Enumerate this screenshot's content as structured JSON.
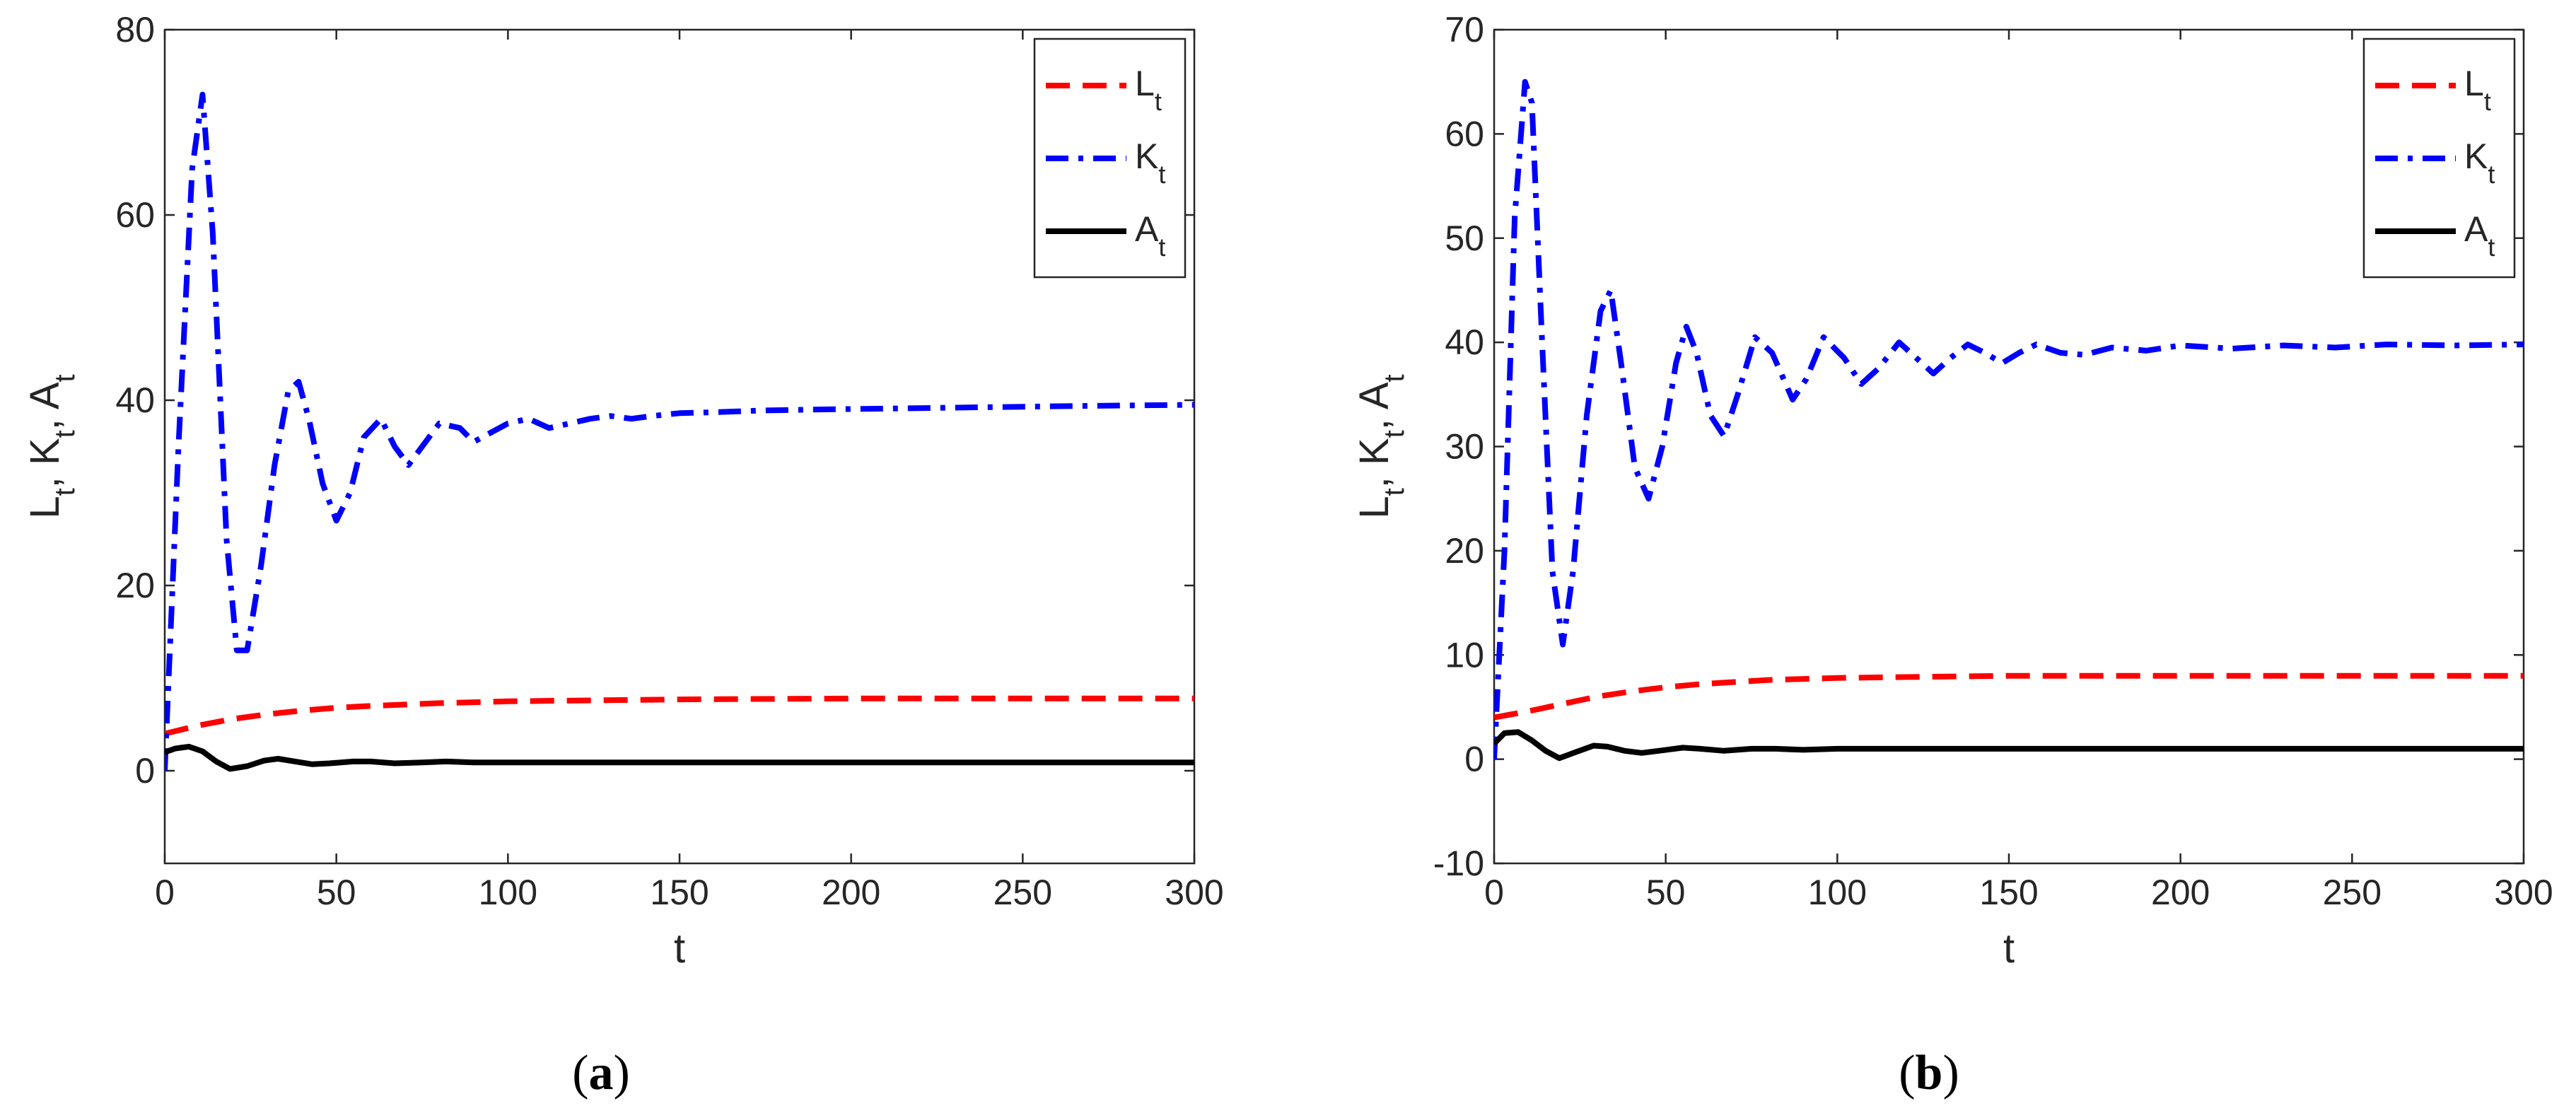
{
  "chart_data": [
    {
      "type": "line",
      "caption_letter": "a",
      "xlabel": "t",
      "ylabel": "L_t, K_t, A_t",
      "xlim": [
        0,
        300
      ],
      "ylim": [
        -10,
        80
      ],
      "xticks": [
        0,
        50,
        100,
        150,
        200,
        250,
        300
      ],
      "yticks": [
        0,
        20,
        40,
        60,
        80
      ],
      "legend_position": "top-right",
      "series": [
        {
          "name": "L_t",
          "label_main": "L",
          "label_sub": "t",
          "color": "#ff0000",
          "style": "dashed",
          "x": [
            0,
            10,
            20,
            30,
            40,
            50,
            60,
            80,
            100,
            125,
            150,
            200,
            250,
            300
          ],
          "values": [
            4,
            4.9,
            5.6,
            6.1,
            6.5,
            6.8,
            7.0,
            7.3,
            7.5,
            7.6,
            7.7,
            7.8,
            7.8,
            7.8
          ]
        },
        {
          "name": "K_t",
          "label_main": "K",
          "label_sub": "t",
          "color": "#0000ff",
          "style": "dashdot",
          "x": [
            0,
            4,
            8,
            11,
            14,
            18,
            21,
            24,
            28,
            32,
            36,
            39,
            42,
            46,
            50,
            54,
            58,
            63,
            67,
            71,
            75,
            80,
            86,
            90,
            95,
            100,
            106,
            112,
            118,
            124,
            130,
            136,
            142,
            150,
            160,
            175,
            190,
            210,
            230,
            250,
            270,
            300
          ],
          "values": [
            0,
            35,
            65,
            73,
            58,
            25,
            13,
            13,
            22,
            33,
            41,
            42,
            38,
            31,
            27,
            30,
            36,
            38,
            35,
            33,
            35,
            37.5,
            37,
            35.5,
            36.5,
            37.5,
            38,
            37,
            37.5,
            38,
            38.3,
            38,
            38.3,
            38.6,
            38.7,
            38.9,
            39,
            39.1,
            39.2,
            39.3,
            39.4,
            39.5
          ]
        },
        {
          "name": "A_t",
          "label_main": "A",
          "label_sub": "t",
          "color": "#000000",
          "style": "solid",
          "x": [
            0,
            3,
            7,
            11,
            15,
            19,
            24,
            29,
            33,
            38,
            43,
            48,
            55,
            60,
            67,
            75,
            82,
            90,
            100,
            120,
            150,
            200,
            250,
            300
          ],
          "values": [
            2,
            2.4,
            2.6,
            2.1,
            1.0,
            0.2,
            0.5,
            1.1,
            1.3,
            1.0,
            0.7,
            0.8,
            1.0,
            1.0,
            0.8,
            0.9,
            1.0,
            0.9,
            0.9,
            0.9,
            0.9,
            0.9,
            0.9,
            0.9
          ]
        }
      ]
    },
    {
      "type": "line",
      "caption_letter": "b",
      "xlabel": "t",
      "ylabel": "L_t, K_t, A_t",
      "xlim": [
        0,
        300
      ],
      "ylim": [
        -10,
        70
      ],
      "xticks": [
        0,
        50,
        100,
        150,
        200,
        250,
        300
      ],
      "yticks": [
        -10,
        0,
        10,
        20,
        30,
        40,
        50,
        60,
        70
      ],
      "legend_position": "top-right",
      "series": [
        {
          "name": "L_t",
          "label_main": "L",
          "label_sub": "t",
          "color": "#ff0000",
          "style": "dashed",
          "x": [
            0,
            10,
            20,
            30,
            40,
            50,
            60,
            80,
            100,
            125,
            150,
            200,
            250,
            300
          ],
          "values": [
            4,
            4.6,
            5.3,
            6.0,
            6.5,
            6.9,
            7.2,
            7.6,
            7.8,
            7.9,
            8.0,
            8.0,
            8.0,
            8.0
          ]
        },
        {
          "name": "K_t",
          "label_main": "K",
          "label_sub": "t",
          "color": "#0000ff",
          "style": "dashdot",
          "x": [
            0,
            3,
            6,
            9,
            11,
            14,
            17,
            20,
            23,
            27,
            31,
            34,
            37,
            41,
            45,
            49,
            53,
            56,
            59,
            63,
            67,
            71,
            76,
            81,
            87,
            91,
            96,
            102,
            107,
            112,
            118,
            123,
            128,
            133,
            138,
            143,
            148,
            153,
            158,
            165,
            172,
            180,
            190,
            200,
            215,
            230,
            245,
            260,
            280,
            300
          ],
          "values": [
            0,
            20,
            52,
            65,
            63,
            40,
            18,
            11,
            18,
            33,
            43,
            45,
            38,
            28,
            25,
            30,
            38,
            41.5,
            39,
            33,
            31,
            35,
            40.5,
            39,
            34.5,
            36.5,
            40.5,
            38.5,
            36,
            37.5,
            40,
            38.5,
            37,
            38.5,
            39.8,
            39,
            38,
            39,
            39.8,
            39,
            38.8,
            39.5,
            39.2,
            39.7,
            39.4,
            39.7,
            39.5,
            39.8,
            39.7,
            39.8
          ]
        },
        {
          "name": "A_t",
          "label_main": "A",
          "label_sub": "t",
          "color": "#000000",
          "style": "solid",
          "x": [
            0,
            3,
            7,
            11,
            15,
            19,
            24,
            29,
            33,
            38,
            43,
            48,
            55,
            60,
            67,
            75,
            82,
            90,
            100,
            120,
            150,
            200,
            250,
            300
          ],
          "values": [
            1.5,
            2.5,
            2.6,
            1.8,
            0.8,
            0.1,
            0.7,
            1.3,
            1.2,
            0.8,
            0.6,
            0.8,
            1.1,
            1.0,
            0.8,
            1.0,
            1.0,
            0.9,
            1.0,
            1.0,
            1.0,
            1.0,
            1.0,
            1.0
          ]
        }
      ]
    }
  ]
}
